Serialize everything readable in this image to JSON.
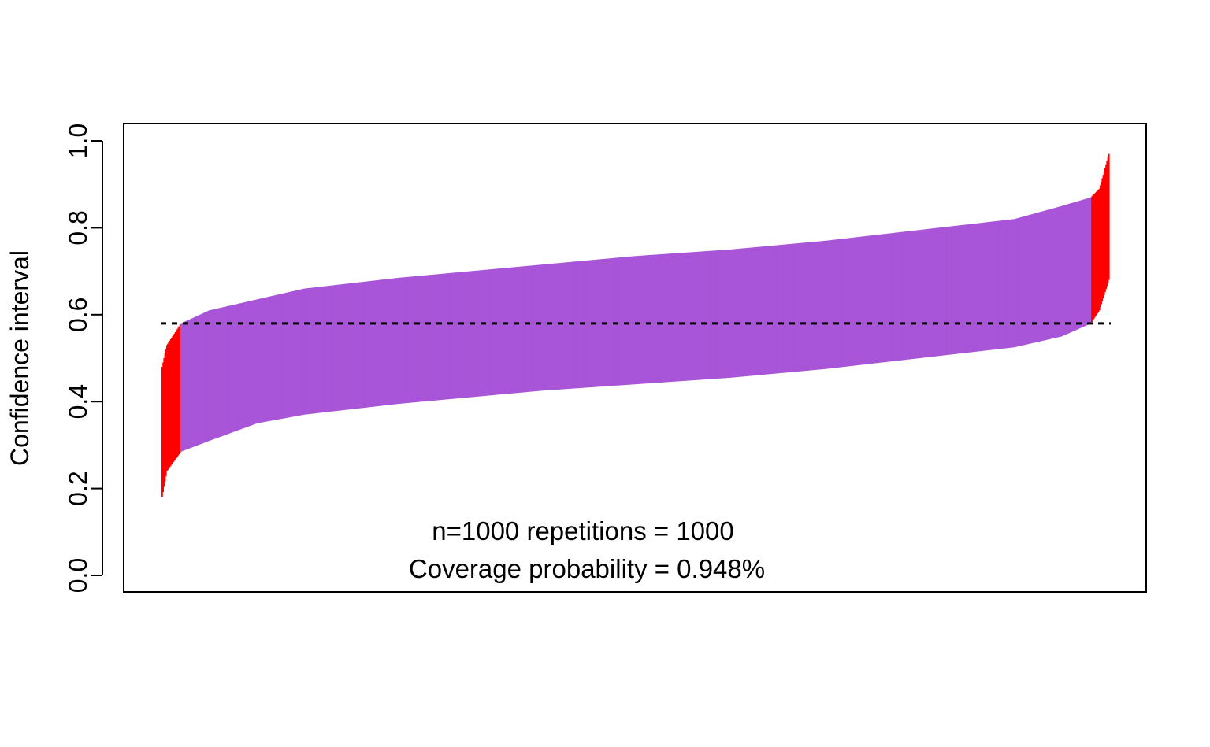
{
  "chart_data": {
    "type": "interval",
    "ylabel": "Confidence interval",
    "xlabel": "",
    "ylim": [
      0.0,
      1.0
    ],
    "yticks": [
      0.0,
      0.2,
      0.4,
      0.6,
      0.8,
      1.0
    ],
    "ytick_labels": [
      "0.0",
      "0.2",
      "0.4",
      "0.6",
      "0.8",
      "1.0"
    ],
    "x_axis_shown": false,
    "grid": false,
    "reference_line": {
      "value": 0.58,
      "style": "dotted",
      "color": "#000000"
    },
    "n_intervals": 1000,
    "sorted_by": "interval center",
    "colors": {
      "covering": "#a855d8",
      "not_covering": "#ff0000"
    },
    "interval_profile": {
      "lower_at_start": 0.18,
      "lower_at_end": 0.68,
      "upper_at_start": 0.48,
      "upper_at_end": 0.97,
      "lower_quantiles": [
        [
          0.0,
          0.18
        ],
        [
          0.005,
          0.24
        ],
        [
          0.02,
          0.285
        ],
        [
          0.05,
          0.31
        ],
        [
          0.1,
          0.35
        ],
        [
          0.15,
          0.37
        ],
        [
          0.25,
          0.395
        ],
        [
          0.4,
          0.425
        ],
        [
          0.5,
          0.44
        ],
        [
          0.6,
          0.455
        ],
        [
          0.7,
          0.475
        ],
        [
          0.8,
          0.5
        ],
        [
          0.9,
          0.525
        ],
        [
          0.95,
          0.55
        ],
        [
          0.981,
          0.58
        ],
        [
          0.99,
          0.61
        ],
        [
          1.0,
          0.68
        ]
      ],
      "upper_quantiles": [
        [
          0.0,
          0.48
        ],
        [
          0.005,
          0.53
        ],
        [
          0.02,
          0.58
        ],
        [
          0.05,
          0.61
        ],
        [
          0.1,
          0.635
        ],
        [
          0.15,
          0.66
        ],
        [
          0.25,
          0.685
        ],
        [
          0.4,
          0.715
        ],
        [
          0.5,
          0.735
        ],
        [
          0.6,
          0.75
        ],
        [
          0.7,
          0.77
        ],
        [
          0.8,
          0.795
        ],
        [
          0.9,
          0.82
        ],
        [
          0.95,
          0.85
        ],
        [
          0.981,
          0.87
        ],
        [
          0.99,
          0.89
        ],
        [
          1.0,
          0.97
        ]
      ]
    }
  },
  "annotations": {
    "line1": "n=1000 repetitions = 1000",
    "line2": "Coverage probability = 0.948%"
  }
}
